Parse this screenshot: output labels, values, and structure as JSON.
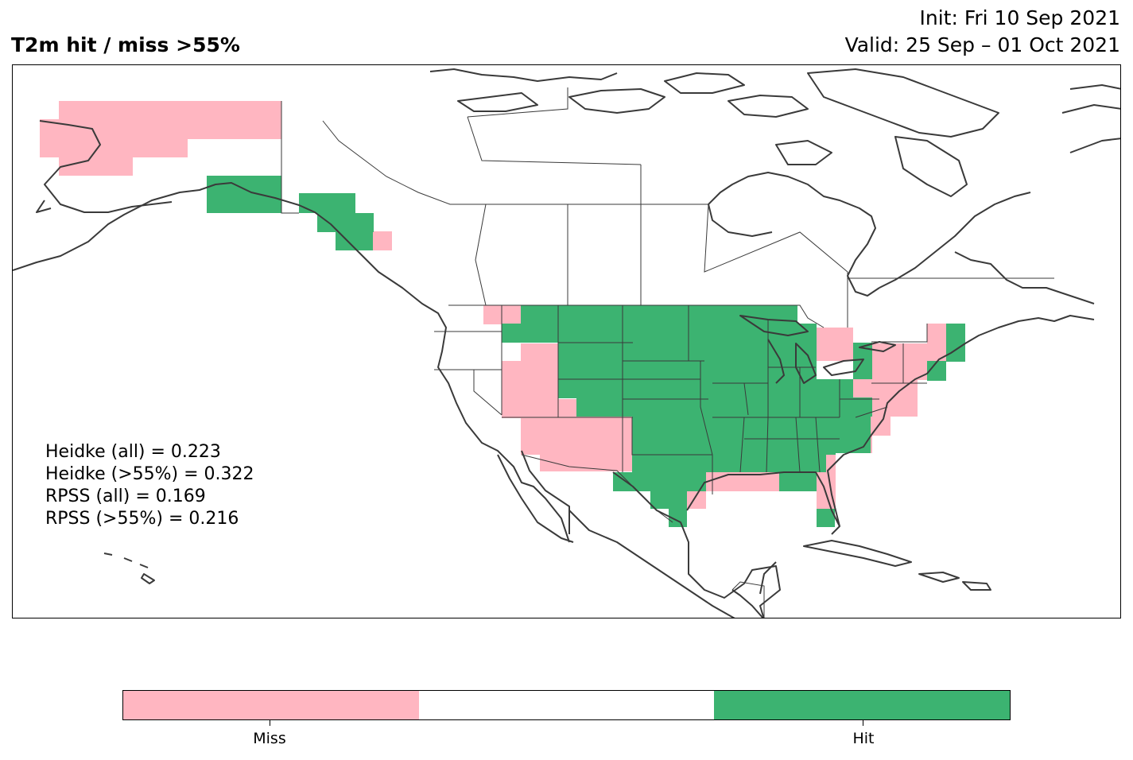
{
  "header": {
    "title": "T2m hit / miss  >55%",
    "init": "Init: Fri 10 Sep 2021",
    "valid": "Valid: 25 Sep – 01 Oct 2021"
  },
  "stats": [
    "Heidke (all) = 0.223",
    "Heidke (>55%) = 0.322",
    "RPSS (all) = 0.169",
    "RPSS (>55%) = 0.216"
  ],
  "legend": {
    "miss_label": "Miss",
    "hit_label": "Hit",
    "miss_color": "#ffb6c1",
    "neutral_color": "#ffffff",
    "hit_color": "#3cb371"
  },
  "map": {
    "region": "North America",
    "projection": "PlateCarree",
    "extent_lon": [
      -170,
      -50
    ],
    "extent_lat": [
      10,
      70
    ]
  }
}
